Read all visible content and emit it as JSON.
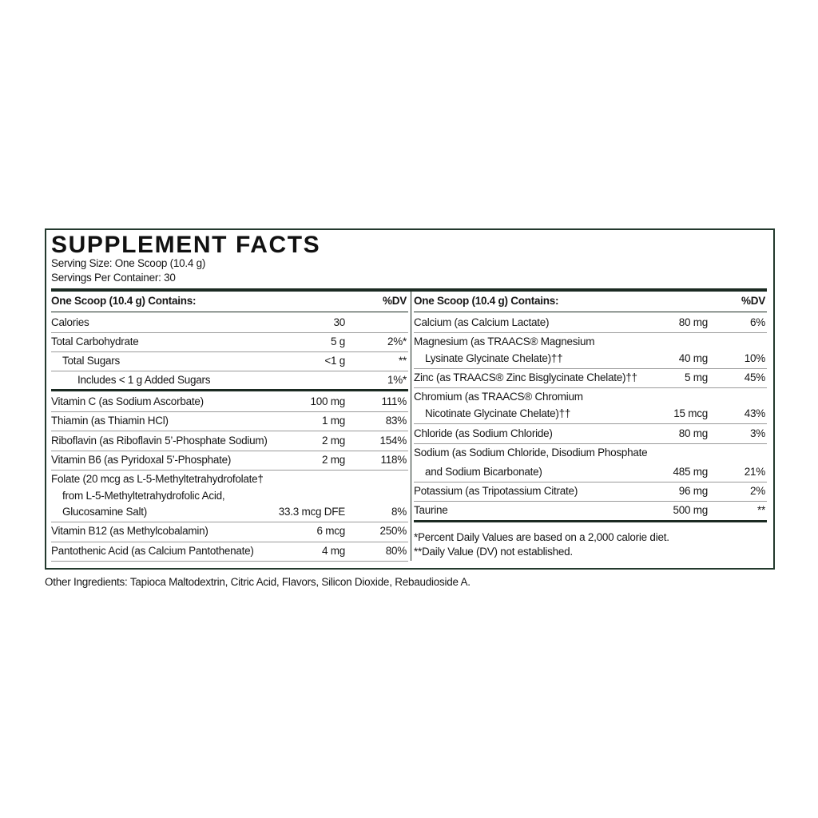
{
  "title": "SUPPLEMENT FACTS",
  "serving_size": "Serving Size: One Scoop (10.4 g)",
  "servings_per_container": "Servings Per Container: 30",
  "left": {
    "header": "One Scoop (10.4 g) Contains:",
    "dv_header": "%DV",
    "rows": [
      {
        "name": [
          "Calories"
        ],
        "amount": "30"
      },
      {
        "name": [
          "Total Carbohydrate"
        ],
        "amount": "5 g",
        "dv": "2%*"
      },
      {
        "name": [
          "Total Sugars"
        ],
        "amount": "<1 g",
        "dv": "**"
      },
      {
        "name": [
          "Includes < 1 g Added Sugars"
        ],
        "dv": "1%*"
      },
      {
        "name": [
          "Vitamin C (as Sodium Ascorbate)"
        ],
        "amount": "100 mg",
        "dv": "111%"
      },
      {
        "name": [
          "Thiamin (as Thiamin HCl)"
        ],
        "amount": "1 mg",
        "dv": "83%"
      },
      {
        "name": [
          "Riboflavin (as Riboflavin 5’-Phosphate Sodium)"
        ],
        "amount": "2 mg",
        "dv": "154%"
      },
      {
        "name": [
          "Vitamin B6 (as Pyridoxal 5’-Phosphate)"
        ],
        "amount": "2 mg",
        "dv": "118%"
      },
      {
        "name": [
          "Folate (20 mcg as L-5-Methyltetrahydrofolate†",
          "from L-5-Methyltetrahydrofolic Acid,",
          "Glucosamine Salt)"
        ],
        "amount": "33.3 mcg DFE",
        "dv": "8%"
      },
      {
        "name": [
          "Vitamin B12 (as Methylcobalamin)"
        ],
        "amount": "6 mcg",
        "dv": "250%"
      },
      {
        "name": [
          "Pantothenic Acid (as Calcium Pantothenate)"
        ],
        "amount": "4 mg",
        "dv": "80%"
      }
    ]
  },
  "right": {
    "header": "One Scoop (10.4 g) Contains:",
    "dv_header": "%DV",
    "rows": [
      {
        "name": [
          "Calcium (as Calcium Lactate)"
        ],
        "amount": "80 mg",
        "dv": "6%"
      },
      {
        "name": [
          "Magnesium (as TRAACS® Magnesium",
          "Lysinate Glycinate Chelate)††"
        ],
        "amount": "40 mg",
        "dv": "10%"
      },
      {
        "name": [
          "Zinc (as TRAACS® Zinc Bisglycinate Chelate)††"
        ],
        "amount": "5 mg",
        "dv": "45%"
      },
      {
        "name": [
          "Chromium (as TRAACS® Chromium",
          "Nicotinate Glycinate Chelate)††"
        ],
        "amount": "15 mcg",
        "dv": "43%"
      },
      {
        "name": [
          "Chloride (as Sodium Chloride)"
        ],
        "amount": "80 mg",
        "dv": "3%"
      },
      {
        "name": [
          "Sodium (as Sodium Chloride, Disodium Phosphate",
          "and Sodium Bicarbonate)"
        ],
        "amount": "485 mg",
        "dv": "21%"
      },
      {
        "name": [
          "Potassium (as Tripotassium Citrate)"
        ],
        "amount": "96 mg",
        "dv": "2%"
      },
      {
        "name": [
          "Taurine"
        ],
        "amount": "500 mg",
        "dv": "**"
      }
    ],
    "footnotes": [
      "*Percent Daily Values are based on a 2,000 calorie diet.",
      "**Daily Value (DV) not established."
    ]
  },
  "other_ingredients": "Other Ingredients: Tapioca Maltodextrin, Citric Acid, Flavors, Silicon Dioxide, Rebaudioside A."
}
